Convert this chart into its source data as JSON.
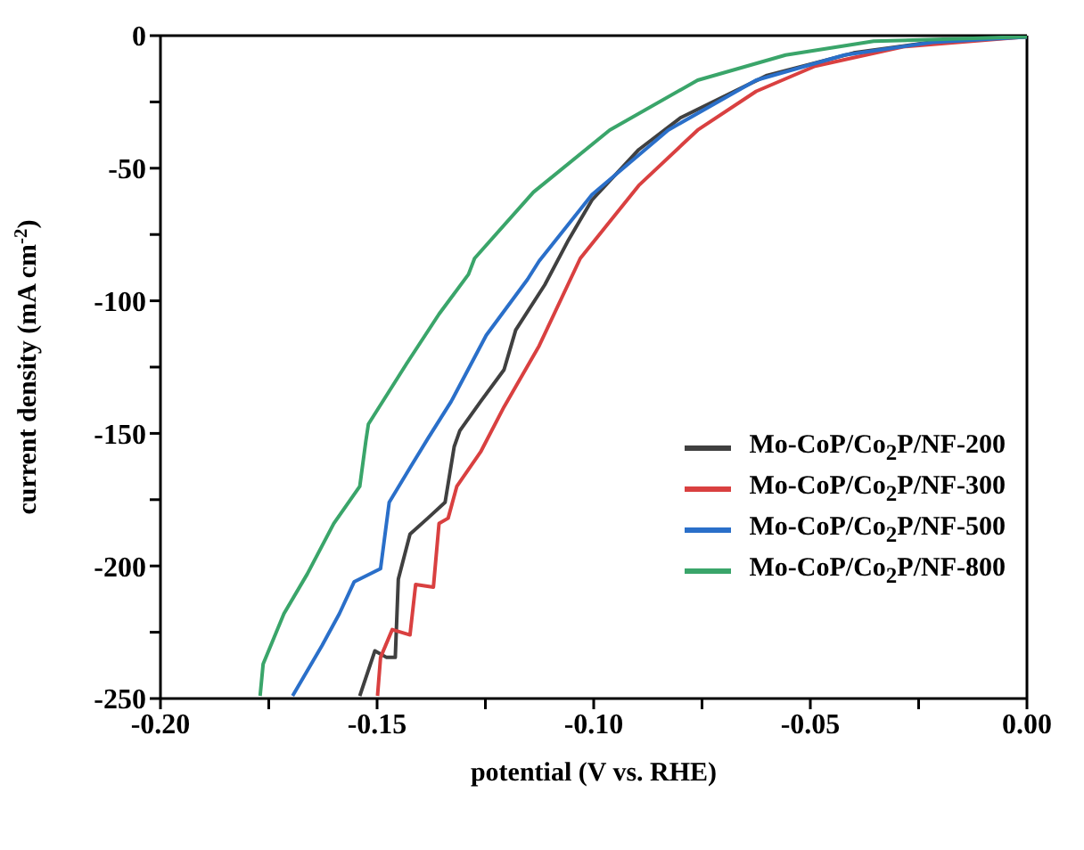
{
  "chart_data": {
    "type": "line",
    "xlabel": "potential (V vs. RHE)",
    "ylabel": "current density (mA cm$^{-2}$)",
    "xlim": [
      -0.2,
      0
    ],
    "ylim": [
      -250,
      0
    ],
    "xticks": [
      {
        "value": -0.2,
        "label": "-0.20"
      },
      {
        "value": -0.175,
        "label": null
      },
      {
        "value": -0.15,
        "label": "-0.15"
      },
      {
        "value": -0.125,
        "label": null
      },
      {
        "value": -0.1,
        "label": "-0.10"
      },
      {
        "value": -0.075,
        "label": null
      },
      {
        "value": -0.05,
        "label": "-0.05"
      },
      {
        "value": -0.025,
        "label": null
      },
      {
        "value": 0,
        "label": "0.00"
      }
    ],
    "yticks": [
      -250,
      {
        "value": -225,
        "label": null
      },
      -200,
      {
        "value": -175,
        "label": null
      },
      -150,
      {
        "value": -125,
        "label": null
      },
      -100,
      {
        "value": -75,
        "label": null
      },
      -50,
      {
        "value": -25,
        "label": null
      },
      0
    ],
    "grid": false,
    "legend": "right",
    "marker": "none",
    "line_style": "solid",
    "series": [
      {
        "name": "Mo-CoP/Co$_{2}$P/NF-200",
        "color": "#404040",
        "x": [
          -0.154,
          -0.1505,
          -0.1478,
          -0.1458,
          -0.1451,
          -0.1424,
          -0.1383,
          -0.1343,
          -0.1322,
          -0.1309,
          -0.1261,
          -0.1207,
          -0.118,
          -0.1113,
          -0.1058,
          -0.1004,
          -0.0896,
          -0.08,
          -0.06,
          -0.04,
          -0.02,
          0
        ],
        "values": [
          -249,
          -232,
          -234.5,
          -234.5,
          -205,
          -188,
          -182,
          -176,
          -155,
          -149,
          -138,
          -126,
          -111,
          -94,
          -77,
          -62,
          -43,
          -31,
          -15,
          -6.5,
          -2,
          -0.4
        ]
      },
      {
        "name": "Mo-CoP/Co$_{2}$P/NF-300",
        "color": "#d94040",
        "x": [
          -0.1499,
          -0.1492,
          -0.1465,
          -0.1424,
          -0.1411,
          -0.137,
          -0.1357,
          -0.1336,
          -0.1316,
          -0.1261,
          -0.1207,
          -0.1126,
          -0.1031,
          -0.0896,
          -0.076,
          -0.0625,
          -0.0489,
          -0.0286,
          0
        ],
        "values": [
          -249,
          -234.5,
          -224,
          -226,
          -207,
          -208,
          -184,
          -182,
          -170,
          -157,
          -140,
          -117,
          -84,
          -56.5,
          -35.6,
          -21,
          -11.5,
          -4.2,
          -0.4
        ]
      },
      {
        "name": "Mo-CoP/Co$_{2}$P/NF-500",
        "color": "#2a6fc9",
        "x": [
          -0.1695,
          -0.1627,
          -0.1587,
          -0.1553,
          -0.1492,
          -0.1472,
          -0.1424,
          -0.1383,
          -0.1329,
          -0.1248,
          -0.1153,
          -0.1126,
          -0.1004,
          -0.0828,
          -0.0625,
          -0.0421,
          -0.0218,
          0
        ],
        "values": [
          -249,
          -230,
          -218,
          -206,
          -201,
          -176,
          -163,
          -152,
          -138,
          -113,
          -92,
          -85,
          -60,
          -35.6,
          -16.8,
          -7.3,
          -2.5,
          -0.5
        ]
      },
      {
        "name": "Mo-CoP/Co$_{2}$P/NF-800",
        "color": "#3aa56a",
        "x": [
          -0.177,
          -0.1763,
          -0.1715,
          -0.1661,
          -0.16,
          -0.154,
          -0.1526,
          -0.152,
          -0.1431,
          -0.1357,
          -0.1289,
          -0.1275,
          -0.1139,
          -0.0963,
          -0.076,
          -0.0557,
          -0.0354,
          0
        ],
        "values": [
          -249,
          -237,
          -218,
          -203,
          -184,
          -170,
          -153,
          -146.5,
          -123.5,
          -105,
          -90,
          -84,
          -59,
          -35.6,
          -16.8,
          -7.3,
          -2.1,
          -0.4
        ]
      }
    ]
  }
}
